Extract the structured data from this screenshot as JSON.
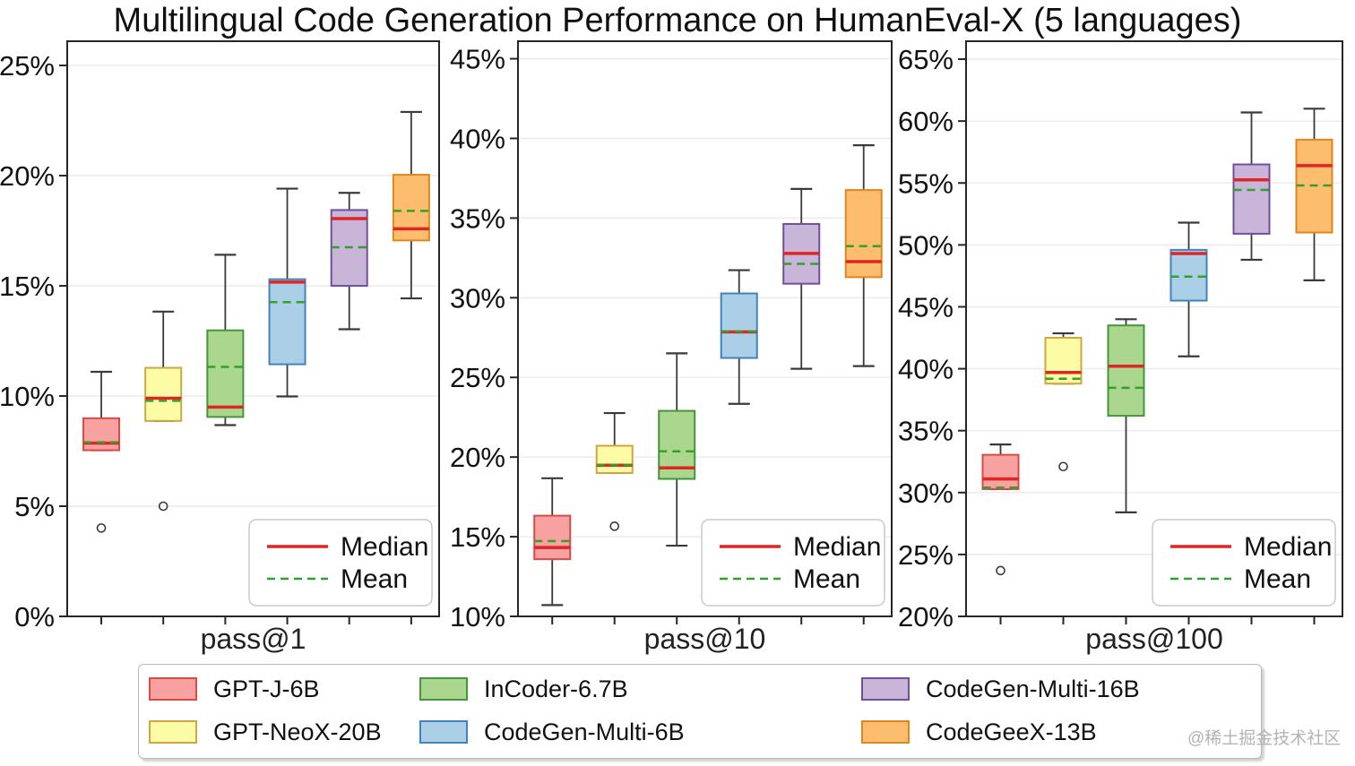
{
  "title": "Multilingual Code Generation Performance on HumanEval-X (5 languages)",
  "watermark": "@稀土掘金技术社区",
  "inner_legend": {
    "median_label": "Median",
    "mean_label": "Mean"
  },
  "colors": {
    "median_line": "#e02525",
    "mean_line": "#33a02c",
    "whisker": "#3a3a3a",
    "grid": "#ececec",
    "spine": "#262626",
    "tick_text": "#111111"
  },
  "models": [
    {
      "name": "GPT-J-6B",
      "fill": "#f7a2a1",
      "edge": "#d94a45"
    },
    {
      "name": "GPT-NeoX-20B",
      "fill": "#fdfca6",
      "edge": "#cfa640"
    },
    {
      "name": "InCoder-6.7B",
      "fill": "#aad78d",
      "edge": "#46953e"
    },
    {
      "name": "CodeGen-Multi-6B",
      "fill": "#aacfe7",
      "edge": "#4183bb"
    },
    {
      "name": "CodeGen-Multi-16B",
      "fill": "#c8b5d8",
      "edge": "#6f4f9e"
    },
    {
      "name": "CodeGeeX-13B",
      "fill": "#fcbd6e",
      "edge": "#e0861d"
    }
  ],
  "chart_data": [
    {
      "type": "boxplot",
      "xlabel": "pass@1",
      "ylim": [
        0,
        26.1
      ],
      "yticks": [
        0,
        5,
        10,
        15,
        20,
        25
      ],
      "ytick_suffix": "%",
      "boxes": [
        {
          "model": "GPT-J-6B",
          "whislo": 7.54,
          "q1": 7.54,
          "med": 7.86,
          "mean": 7.9,
          "q3": 8.99,
          "whishi": 11.1,
          "fliers": [
            4.01
          ]
        },
        {
          "model": "GPT-NeoX-20B",
          "whislo": 8.87,
          "q1": 8.87,
          "med": 9.9,
          "mean": 9.78,
          "q3": 11.28,
          "whishi": 13.83,
          "fliers": [
            5.0
          ]
        },
        {
          "model": "InCoder-6.7B",
          "whislo": 8.68,
          "q1": 9.05,
          "med": 9.5,
          "mean": 11.32,
          "q3": 12.98,
          "whishi": 16.41,
          "fliers": []
        },
        {
          "model": "CodeGen-Multi-6B",
          "whislo": 9.98,
          "q1": 11.44,
          "med": 15.17,
          "mean": 14.26,
          "q3": 15.3,
          "whishi": 19.41,
          "fliers": []
        },
        {
          "model": "CodeGen-Multi-16B",
          "whislo": 13.03,
          "q1": 15.0,
          "med": 18.05,
          "mean": 16.75,
          "q3": 18.44,
          "whishi": 19.22,
          "fliers": []
        },
        {
          "model": "CodeGeeX-13B",
          "whislo": 14.43,
          "q1": 17.06,
          "med": 17.59,
          "mean": 18.4,
          "q3": 20.04,
          "whishi": 22.89,
          "fliers": []
        }
      ]
    },
    {
      "type": "boxplot",
      "xlabel": "pass@10",
      "ylim": [
        10,
        46.1
      ],
      "yticks": [
        10,
        15,
        20,
        25,
        30,
        35,
        40,
        45
      ],
      "ytick_suffix": "%",
      "boxes": [
        {
          "model": "GPT-J-6B",
          "whislo": 10.71,
          "q1": 13.59,
          "med": 14.32,
          "mean": 14.73,
          "q3": 16.32,
          "whishi": 18.67,
          "fliers": []
        },
        {
          "model": "GPT-NeoX-20B",
          "whislo": 19.0,
          "q1": 19.0,
          "med": 19.49,
          "mean": 19.52,
          "q3": 20.71,
          "whishi": 22.76,
          "fliers": [
            15.66
          ]
        },
        {
          "model": "InCoder-6.7B",
          "whislo": 14.44,
          "q1": 18.63,
          "med": 19.32,
          "mean": 20.36,
          "q3": 22.9,
          "whishi": 26.51,
          "fliers": []
        },
        {
          "model": "CodeGen-Multi-6B",
          "whislo": 23.34,
          "q1": 26.22,
          "med": 27.85,
          "mean": 27.88,
          "q3": 30.27,
          "whishi": 31.73,
          "fliers": []
        },
        {
          "model": "CodeGen-Multi-16B",
          "whislo": 25.54,
          "q1": 30.88,
          "med": 32.78,
          "mean": 32.13,
          "q3": 34.63,
          "whishi": 36.83,
          "fliers": []
        },
        {
          "model": "CodeGeeX-13B",
          "whislo": 25.71,
          "q1": 31.29,
          "med": 32.27,
          "mean": 33.24,
          "q3": 36.76,
          "whishi": 39.57,
          "fliers": []
        }
      ]
    },
    {
      "type": "boxplot",
      "xlabel": "pass@100",
      "ylim": [
        20,
        66.45
      ],
      "yticks": [
        20,
        25,
        30,
        35,
        40,
        45,
        50,
        55,
        60,
        65
      ],
      "ytick_suffix": "%",
      "boxes": [
        {
          "model": "GPT-J-6B",
          "whislo": 30.28,
          "q1": 30.28,
          "med": 31.1,
          "mean": 30.4,
          "q3": 33.05,
          "whishi": 33.88,
          "fliers": [
            23.7
          ]
        },
        {
          "model": "GPT-NeoX-20B",
          "whislo": 38.8,
          "q1": 38.8,
          "med": 39.7,
          "mean": 39.19,
          "q3": 42.5,
          "whishi": 42.86,
          "fliers": [
            32.1
          ]
        },
        {
          "model": "InCoder-6.7B",
          "whislo": 28.4,
          "q1": 36.2,
          "med": 40.2,
          "mean": 38.46,
          "q3": 43.5,
          "whishi": 44.0,
          "fliers": []
        },
        {
          "model": "CodeGen-Multi-6B",
          "whislo": 41.0,
          "q1": 45.5,
          "med": 49.3,
          "mean": 47.44,
          "q3": 49.6,
          "whishi": 51.8,
          "fliers": []
        },
        {
          "model": "CodeGen-Multi-16B",
          "whislo": 48.8,
          "q1": 50.9,
          "med": 55.25,
          "mean": 54.44,
          "q3": 56.5,
          "whishi": 60.7,
          "fliers": []
        },
        {
          "model": "CodeGeeX-13B",
          "whislo": 47.14,
          "q1": 51.0,
          "med": 56.4,
          "mean": 54.8,
          "q3": 58.5,
          "whishi": 61.0,
          "fliers": []
        }
      ]
    }
  ]
}
